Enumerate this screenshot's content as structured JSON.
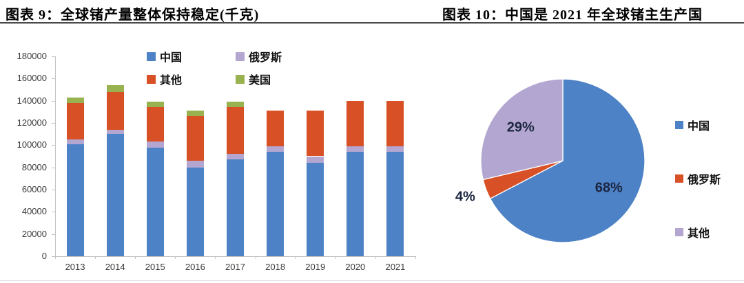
{
  "page": {
    "figure9_title": "图表 9：全球锗产量整体保持稳定(千克)",
    "figure10_title": "图表 10：中国是 2021 年全球锗主生产国"
  },
  "chart_data": [
    {
      "type": "bar",
      "stacked": true,
      "title": "全球锗产量整体保持稳定(千克)",
      "xlabel": "",
      "ylabel": "",
      "ylim": [
        0,
        180000
      ],
      "y_ticks": [
        0,
        20000,
        40000,
        60000,
        80000,
        100000,
        120000,
        140000,
        160000,
        180000
      ],
      "grid": false,
      "legend_position": "top",
      "categories": [
        "2013",
        "2014",
        "2015",
        "2016",
        "2017",
        "2018",
        "2019",
        "2020",
        "2021"
      ],
      "series": [
        {
          "name": "中国",
          "color": "#4D82C6",
          "values": [
            101000,
            110000,
            98000,
            80000,
            87000,
            94000,
            84000,
            94000,
            94000
          ]
        },
        {
          "name": "俄罗斯",
          "color": "#B3A7D1",
          "values": [
            4000,
            4000,
            5000,
            6000,
            5000,
            5000,
            6000,
            5000,
            5000
          ]
        },
        {
          "name": "其他",
          "color": "#D85026",
          "values": [
            33000,
            34000,
            31000,
            40000,
            42000,
            32000,
            41000,
            41000,
            41000
          ]
        },
        {
          "name": "美国",
          "color": "#98B24F",
          "values": [
            5000,
            6000,
            5000,
            5000,
            5000,
            0,
            0,
            0,
            0
          ]
        }
      ]
    },
    {
      "type": "pie",
      "title": "中国是 2021 年全球锗主生产国",
      "start_angle_deg": 0,
      "direction": "clockwise",
      "legend_position": "right",
      "slices": [
        {
          "name": "中国",
          "label": "68%",
          "pct": 68,
          "color": "#4D82C6"
        },
        {
          "name": "俄罗斯",
          "label": "4%",
          "pct": 4,
          "color": "#D85026"
        },
        {
          "name": "其他",
          "label": "29%",
          "pct": 29,
          "color": "#B3A7D1"
        }
      ]
    }
  ]
}
